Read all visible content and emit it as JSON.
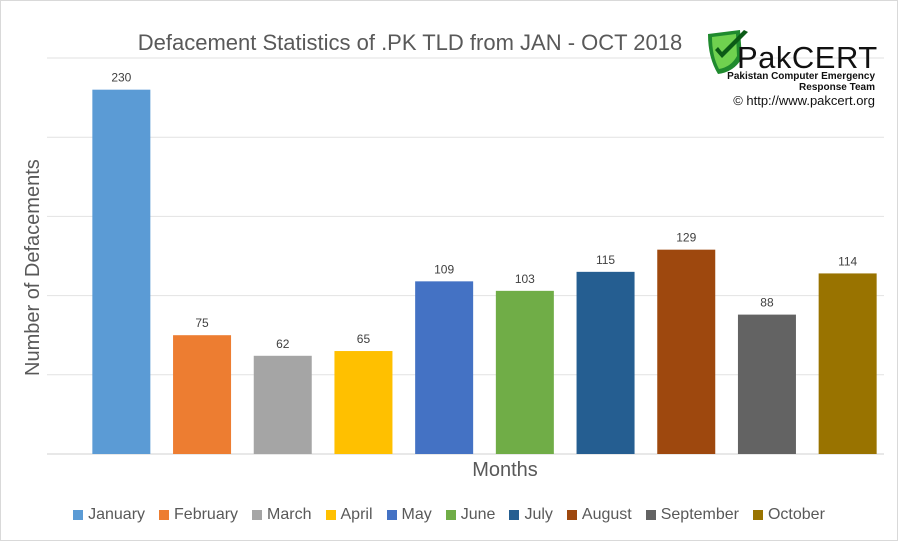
{
  "chart_data": {
    "type": "bar",
    "title": "Defacement Statistics of .PK TLD from JAN - OCT 2018",
    "xlabel": "Months",
    "ylabel": "Number of Defacements",
    "categories": [
      "January",
      "February",
      "March",
      "April",
      "May",
      "June",
      "July",
      "August",
      "September",
      "October"
    ],
    "values": [
      230,
      75,
      62,
      65,
      109,
      103,
      115,
      129,
      88,
      114
    ],
    "colors": [
      "#5b9bd5",
      "#ed7d31",
      "#a5a5a5",
      "#ffc000",
      "#4472c4",
      "#70ad47",
      "#255e91",
      "#9e480e",
      "#636363",
      "#997300"
    ],
    "ylim": [
      0,
      250
    ],
    "grid": true,
    "legend_position": "bottom"
  },
  "logo": {
    "brand": "PakCERT",
    "line1": "Pakistan Computer Emergency",
    "line2": "Response Team",
    "copyright": "© http://www.pakcert.org"
  }
}
